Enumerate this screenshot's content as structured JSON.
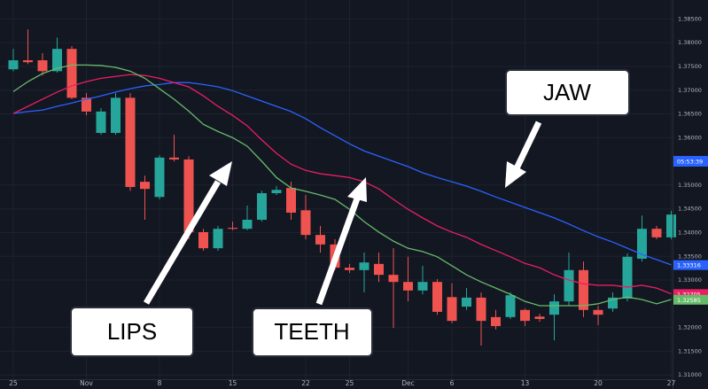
{
  "chart_data": {
    "type": "candlestick",
    "categories": [
      "25",
      null,
      null,
      null,
      null,
      "Nov",
      null,
      null,
      null,
      null,
      "8",
      null,
      null,
      null,
      null,
      "15",
      null,
      null,
      null,
      null,
      "22",
      null,
      null,
      "25",
      null,
      null,
      null,
      "Dec",
      null,
      null,
      "6",
      null,
      null,
      null,
      null,
      "13",
      null,
      null,
      null,
      null,
      "20",
      null,
      null,
      null,
      null,
      "27"
    ],
    "open": [
      1.3744,
      1.3763,
      1.3763,
      1.374,
      1.3787,
      1.3684,
      1.361,
      1.361,
      1.3684,
      1.3507,
      1.3475,
      1.3558,
      1.3554,
      1.3401,
      1.3367,
      1.341,
      1.3408,
      1.3427,
      1.3483,
      1.3494,
      1.3447,
      1.3395,
      1.3375,
      1.3326,
      1.3321,
      1.3334,
      1.3311,
      1.3296,
      1.3278,
      1.3296,
      1.3264,
      1.3244,
      1.3263,
      1.3222,
      1.3222,
      1.3237,
      1.3223,
      1.3227,
      1.3255,
      1.3321,
      1.3237,
      1.324,
      1.3261,
      1.3345,
      1.3408,
      1.339
    ],
    "high": [
      1.3787,
      1.3828,
      1.3778,
      1.3811,
      1.3793,
      1.3694,
      1.3662,
      1.3694,
      1.3694,
      1.352,
      1.3563,
      1.3606,
      1.3561,
      1.3408,
      1.3414,
      1.3423,
      1.3457,
      1.3488,
      1.3498,
      1.3507,
      1.3479,
      1.3414,
      1.3386,
      1.3334,
      1.3358,
      1.3358,
      1.3367,
      1.3349,
      1.333,
      1.3302,
      1.3293,
      1.3283,
      1.3274,
      1.3237,
      1.3274,
      1.324,
      1.3229,
      1.327,
      1.3358,
      1.3339,
      1.3246,
      1.3274,
      1.3356,
      1.3436,
      1.3414,
      1.3446
    ],
    "low": [
      1.374,
      1.3755,
      1.3731,
      1.3737,
      1.3681,
      1.3647,
      1.3606,
      1.3606,
      1.3488,
      1.3427,
      1.347,
      1.355,
      1.3386,
      1.3362,
      1.3362,
      1.3405,
      1.3405,
      1.3423,
      1.3479,
      1.3427,
      1.3386,
      1.3358,
      1.3321,
      1.3315,
      1.3274,
      1.3296,
      1.3199,
      1.3255,
      1.327,
      1.3227,
      1.3209,
      1.3237,
      1.3162,
      1.3196,
      1.3218,
      1.3203,
      1.3212,
      1.3173,
      1.3246,
      1.3222,
      1.3205,
      1.3233,
      1.3255,
      1.3339,
      1.3386,
      1.3386
    ],
    "close": [
      1.3763,
      1.3759,
      1.374,
      1.3787,
      1.3684,
      1.3655,
      1.3655,
      1.3684,
      1.3496,
      1.3492,
      1.3558,
      1.3554,
      1.3401,
      1.3367,
      1.3408,
      1.3408,
      1.3427,
      1.3483,
      1.349,
      1.3442,
      1.3395,
      1.3375,
      1.3326,
      1.3321,
      1.3337,
      1.3311,
      1.3296,
      1.3278,
      1.3296,
      1.3233,
      1.3214,
      1.3263,
      1.3214,
      1.3203,
      1.3268,
      1.3214,
      1.3218,
      1.3255,
      1.3321,
      1.3237,
      1.3227,
      1.3263,
      1.3349,
      1.3408,
      1.339,
      1.3438
    ],
    "up_color": "#26a69a",
    "down_color": "#ef5350",
    "series": [
      {
        "color": "#2962ff",
        "values": [
          1.3651,
          1.3655,
          1.3658,
          1.3666,
          1.3673,
          1.3681,
          1.3688,
          1.3696,
          1.3703,
          1.3709,
          1.3712,
          1.3716,
          1.3716,
          1.3712,
          1.3707,
          1.3699,
          1.3688,
          1.3677,
          1.3666,
          1.3655,
          1.364,
          1.3621,
          1.3604,
          1.3587,
          1.3572,
          1.3561,
          1.355,
          1.3539,
          1.3526,
          1.3516,
          1.3507,
          1.3498,
          1.3487,
          1.3475,
          1.3464,
          1.3453,
          1.3442,
          1.3431,
          1.3418,
          1.3404,
          1.3391,
          1.338,
          1.3367,
          1.3354,
          1.3343,
          1.3332
        ]
      },
      {
        "color": "#e91e63",
        "values": [
          1.3651,
          1.3666,
          1.3681,
          1.3696,
          1.3709,
          1.3718,
          1.3725,
          1.3729,
          1.3733,
          1.3731,
          1.3725,
          1.3716,
          1.3707,
          1.3688,
          1.3666,
          1.3647,
          1.3625,
          1.3595,
          1.3567,
          1.3544,
          1.3531,
          1.3524,
          1.352,
          1.3516,
          1.3507,
          1.3492,
          1.347,
          1.3449,
          1.3431,
          1.3414,
          1.3401,
          1.339,
          1.3375,
          1.3362,
          1.3349,
          1.3335,
          1.3326,
          1.3311,
          1.33,
          1.3292,
          1.3289,
          1.3289,
          1.3285,
          1.3289,
          1.3283,
          1.3271
        ]
      },
      {
        "color": "#66bb6a",
        "values": [
          1.3697,
          1.3718,
          1.3735,
          1.3746,
          1.3753,
          1.3753,
          1.3752,
          1.3748,
          1.374,
          1.3725,
          1.3703,
          1.3681,
          1.3656,
          1.3628,
          1.3613,
          1.36,
          1.3582,
          1.355,
          1.3516,
          1.3494,
          1.3487,
          1.3479,
          1.347,
          1.3449,
          1.3423,
          1.3401,
          1.3382,
          1.3367,
          1.336,
          1.3349,
          1.333,
          1.3311,
          1.3296,
          1.3283,
          1.327,
          1.3255,
          1.3246,
          1.3246,
          1.3246,
          1.3246,
          1.325,
          1.3259,
          1.3264,
          1.3259,
          1.325,
          1.3259
        ]
      }
    ],
    "ylim": [
      1.3091,
      1.389
    ],
    "yticks": [
      {
        "value": 1.385,
        "label": "1.38500"
      },
      {
        "value": 1.38,
        "label": "1.38000"
      },
      {
        "value": 1.375,
        "label": "1.37500"
      },
      {
        "value": 1.37,
        "label": "1.37000"
      },
      {
        "value": 1.365,
        "label": "1.36500"
      },
      {
        "value": 1.36,
        "label": "1.36000"
      },
      {
        "value": 1.35,
        "label": "1.35000"
      },
      {
        "value": 1.345,
        "label": "1.34500"
      },
      {
        "value": 1.34,
        "label": "1.34000"
      },
      {
        "value": 1.335,
        "label": "1.33500"
      },
      {
        "value": 1.33,
        "label": "1.33000"
      },
      {
        "value": 1.32,
        "label": "1.32000"
      },
      {
        "value": 1.315,
        "label": "1.31500"
      },
      {
        "value": 1.31,
        "label": "1.31000"
      }
    ],
    "grid": true,
    "price_labels": [
      {
        "value": 1.33316,
        "label": "1.33316",
        "color": "#2962ff"
      },
      {
        "value": 1.32705,
        "label": "1.32705",
        "color": "#e91e63"
      },
      {
        "value": 1.32585,
        "label": "1.32585",
        "color": "#66bb6a"
      }
    ],
    "countdown": "05:53:39",
    "annotations": [
      "JAW",
      "LIPS",
      "TEETH"
    ]
  }
}
